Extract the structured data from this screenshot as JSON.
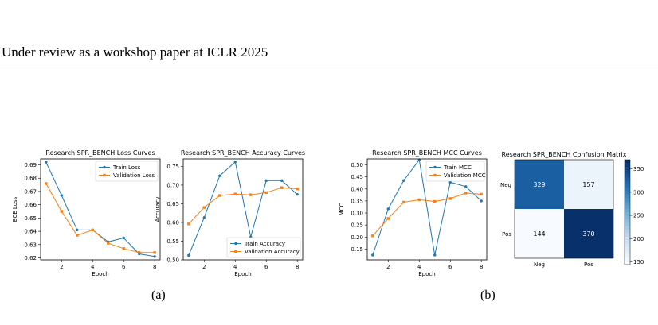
{
  "header": {
    "text": "Under review as a workshop paper at ICLR 2025"
  },
  "captions": {
    "a": "(a)",
    "b": "(b)"
  },
  "chart_data": [
    {
      "type": "line",
      "title": "Research SPR_BENCH Loss Curves",
      "xlabel": "Epoch",
      "ylabel": "BCE Loss",
      "x": [
        1,
        2,
        3,
        4,
        5,
        6,
        7,
        8
      ],
      "xticks": [
        2,
        4,
        6,
        8
      ],
      "yticks": [
        0.62,
        0.63,
        0.64,
        0.65,
        0.66,
        0.67,
        0.68,
        0.69
      ],
      "xlim": [
        0.65,
        8.35
      ],
      "ylim": [
        0.6185,
        0.6945
      ],
      "legend": "top-right",
      "series": [
        {
          "name": "Train Loss",
          "color": "#1f77b4",
          "values": [
            0.692,
            0.667,
            0.641,
            0.641,
            0.632,
            0.635,
            0.623,
            0.621
          ]
        },
        {
          "name": "Validation Loss",
          "color": "#ff7f0e",
          "values": [
            0.676,
            0.655,
            0.637,
            0.641,
            0.631,
            0.627,
            0.624,
            0.624
          ]
        }
      ]
    },
    {
      "type": "line",
      "title": "Research SPR_BENCH Accuracy Curves",
      "xlabel": "Epoch",
      "ylabel": "Accuracy",
      "x": [
        1,
        2,
        3,
        4,
        5,
        6,
        7,
        8
      ],
      "xticks": [
        2,
        4,
        6,
        8
      ],
      "yticks": [
        0.5,
        0.55,
        0.6,
        0.65,
        0.7,
        0.75
      ],
      "xlim": [
        0.65,
        8.35
      ],
      "ylim": [
        0.5,
        0.77
      ],
      "legend": "bottom-right",
      "series": [
        {
          "name": "Train Accuracy",
          "color": "#1f77b4",
          "values": [
            0.512,
            0.613,
            0.725,
            0.762,
            0.561,
            0.712,
            0.712,
            0.675
          ]
        },
        {
          "name": "Validation Accuracy",
          "color": "#ff7f0e",
          "values": [
            0.596,
            0.64,
            0.672,
            0.676,
            0.674,
            0.68,
            0.693,
            0.69
          ]
        }
      ]
    },
    {
      "type": "line",
      "title": "Research SPR_BENCH MCC Curves",
      "xlabel": "Epoch",
      "ylabel": "MCC",
      "x": [
        1,
        2,
        3,
        4,
        5,
        6,
        7,
        8
      ],
      "xticks": [
        2,
        4,
        6,
        8
      ],
      "yticks": [
        0.15,
        0.2,
        0.25,
        0.3,
        0.35,
        0.4,
        0.45,
        0.5
      ],
      "xlim": [
        0.65,
        8.35
      ],
      "ylim": [
        0.105,
        0.525
      ],
      "legend": "top-right",
      "series": [
        {
          "name": "Train MCC",
          "color": "#1f77b4",
          "values": [
            0.125,
            0.317,
            0.435,
            0.521,
            0.125,
            0.428,
            0.41,
            0.35
          ]
        },
        {
          "name": "Validation MCC",
          "color": "#ff7f0e",
          "values": [
            0.205,
            0.277,
            0.345,
            0.355,
            0.348,
            0.36,
            0.383,
            0.378
          ]
        }
      ]
    },
    {
      "type": "heatmap",
      "title": "Research SPR_BENCH Confusion Matrix",
      "row_labels": [
        "Neg",
        "Pos"
      ],
      "col_labels": [
        "Neg",
        "Pos"
      ],
      "values": [
        [
          329,
          157
        ],
        [
          144,
          370
        ]
      ],
      "colorbar_ticks": [
        150,
        200,
        250,
        300,
        350
      ],
      "colorbar_range": [
        144,
        370
      ]
    }
  ]
}
